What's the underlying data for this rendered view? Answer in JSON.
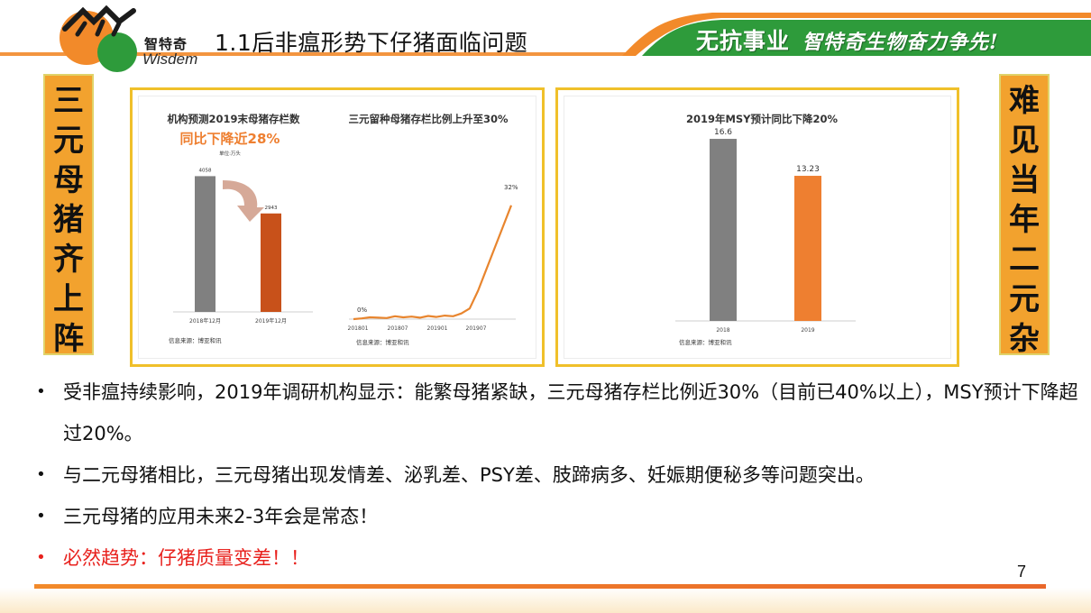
{
  "header": {
    "logo_cn": "智特奇",
    "logo_en": "Wisdem",
    "title": "1.1后非瘟形势下仔猪面临问题",
    "slogan_1": "无抗事业",
    "slogan_2": "智特奇生物奋力争先!",
    "colors": {
      "green_band": "#2e9b3b",
      "orange_accent": "#f28a2a"
    }
  },
  "side_left": {
    "text": "三元母猪齐上阵"
  },
  "side_right": {
    "text": "难见当年二元杂"
  },
  "panel_1": {
    "chart_a": {
      "title": "机构预测2019末母猪存栏数",
      "highlight": "同比下降近28%",
      "unit": "单位:万头",
      "source": "信息来源：博亚和讯"
    },
    "chart_b": {
      "title": "三元留种母猪存栏比例上升至30%",
      "start_label": "0%",
      "end_label": "32%",
      "source": "信息来源：博亚和讯"
    }
  },
  "panel_2": {
    "chart_c": {
      "title": "2019年MSY预计同比下降20%",
      "source": "信息来源：博亚和讯"
    }
  },
  "chart_data": [
    {
      "type": "bar",
      "categories": [
        "2018年12月",
        "2019年12月"
      ],
      "values": [
        4058,
        2943
      ],
      "value_labels": [
        "4058",
        "2943"
      ],
      "colors": [
        "#808080",
        "#c8511a"
      ],
      "title": "机构预测2019末母猪存栏数",
      "ylim": [
        0,
        4500
      ]
    },
    {
      "type": "line",
      "x_ticks": [
        "201801",
        "201807",
        "201901",
        "201907"
      ],
      "values": [
        0,
        0.2,
        0.5,
        0.4,
        0.3,
        0.8,
        0.5,
        0.7,
        0.4,
        0.9,
        0.6,
        1.0,
        0.8,
        1.6,
        3,
        8,
        14,
        20,
        26,
        32
      ],
      "color": "#e8852e",
      "title": "三元留种母猪存栏比例上升至30%",
      "ylim": [
        0,
        35
      ]
    },
    {
      "type": "bar",
      "categories": [
        "2018",
        "2019"
      ],
      "values": [
        16.6,
        13.23
      ],
      "value_labels": [
        "16.6",
        "13.23"
      ],
      "colors": [
        "#808080",
        "#ee7f30"
      ],
      "title": "2019年MSY预计同比下降20%",
      "ylim": [
        0,
        18
      ]
    }
  ],
  "bullets": [
    {
      "text": "受非瘟持续影响，2019年调研机构显示：能繁母猪紧缺，三元母猪存栏比例近30%（目前已40%以上），MSY预计下降超过20%。",
      "red": false
    },
    {
      "text": "与二元母猪相比，三元母猪出现发情差、泌乳差、PSY差、肢蹄病多、妊娠期便秘多等问题突出。",
      "red": false
    },
    {
      "text": "三元母猪的应用未来2-3年会是常态！",
      "red": false
    },
    {
      "text": "必然趋势：仔猪质量变差！！",
      "red": true
    }
  ],
  "page_number": "7"
}
